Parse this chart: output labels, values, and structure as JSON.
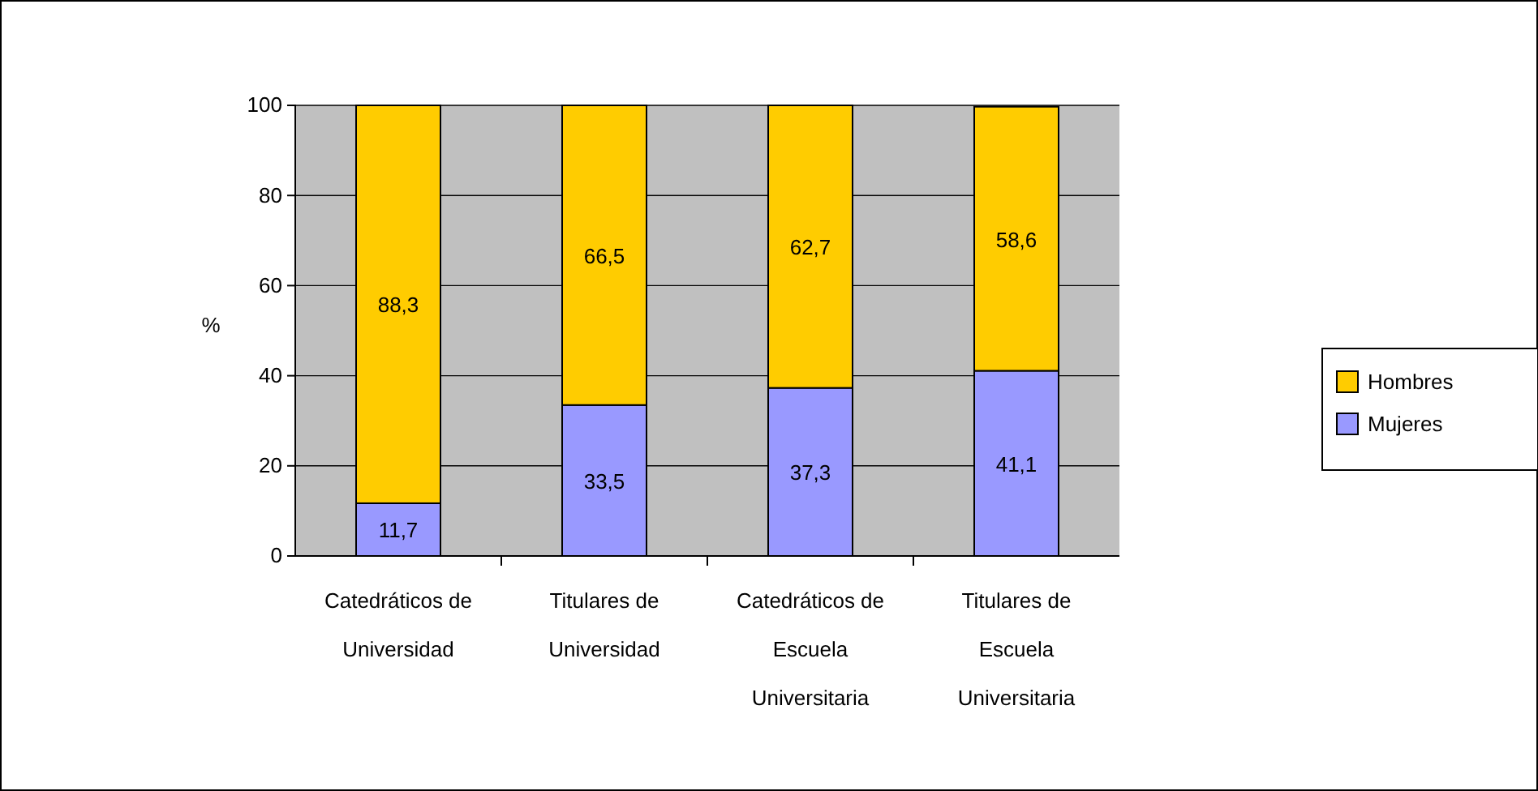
{
  "chart_data": {
    "type": "bar",
    "stacked": true,
    "ylabel": "%",
    "categories": [
      "Catedráticos de Universidad",
      "Titulares de Universidad",
      "Catedráticos de Escuela Universitaria",
      "Titulares de Escuela Universitaria"
    ],
    "series": [
      {
        "name": "Mujeres",
        "color": "#9999ff",
        "values": [
          11.7,
          33.5,
          37.3,
          41.1
        ],
        "value_labels": [
          "11,7",
          "33,5",
          "37,3",
          "41,1"
        ]
      },
      {
        "name": "Hombres",
        "color": "#ffcc00",
        "values": [
          88.3,
          66.5,
          62.7,
          58.6
        ],
        "value_labels": [
          "88,3",
          "66,5",
          "62,7",
          "58,6"
        ]
      }
    ],
    "ylim": [
      0,
      100
    ],
    "yticks": [
      0,
      20,
      40,
      60,
      80,
      100
    ],
    "grid": "y",
    "legend": "right"
  }
}
